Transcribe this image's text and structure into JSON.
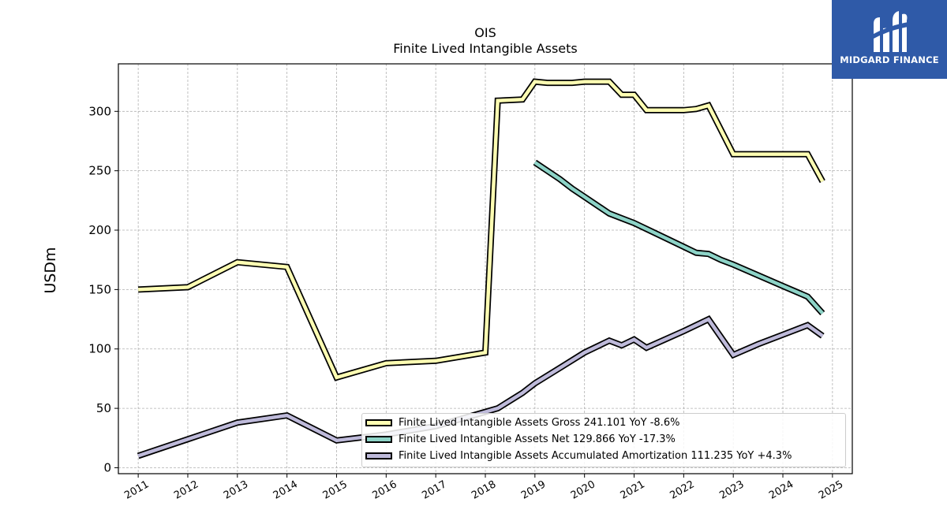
{
  "logo": {
    "text": "MIDGARD FINANCE",
    "color": "#2f5aa8"
  },
  "chart_data": {
    "type": "line",
    "title": "OIS",
    "subtitle": "Finite Lived Intangible Assets",
    "xlabel": "",
    "ylabel": "USDm",
    "xlim": [
      2010.6,
      2025.4
    ],
    "ylim": [
      -5,
      340
    ],
    "grid": true,
    "legend_position": "bottom-right",
    "x_ticks": [
      2011,
      2012,
      2013,
      2014,
      2015,
      2016,
      2017,
      2018,
      2019,
      2020,
      2021,
      2022,
      2023,
      2024,
      2025
    ],
    "y_ticks": [
      0,
      50,
      100,
      150,
      200,
      250,
      300
    ],
    "series": [
      {
        "name": "Finite Lived Intangible Assets Gross",
        "legend_label": "Finite Lived Intangible Assets Gross  241.101 YoY -8.6%",
        "color": "#ffffb3",
        "x": [
          2011,
          2012,
          2013,
          2014,
          2015,
          2016,
          2017,
          2018,
          2018.25,
          2018.75,
          2019,
          2019.25,
          2019.75,
          2020,
          2020.5,
          2020.75,
          2021,
          2021.25,
          2021.75,
          2022,
          2022.25,
          2022.5,
          2023,
          2023.5,
          2023.75,
          2024,
          2024.5,
          2024.8
        ],
        "y": [
          150,
          152,
          173,
          169,
          76,
          88,
          90,
          97,
          309,
          310,
          325,
          324,
          324,
          325,
          325,
          314,
          314,
          301,
          301,
          301,
          302,
          305,
          264,
          264,
          264,
          264,
          264,
          241
        ]
      },
      {
        "name": "Finite Lived Intangible Assets Net",
        "legend_label": "Finite Lived Intangible Assets Net  129.866 YoY -17.3%",
        "color": "#8dd3c7",
        "x": [
          2019,
          2019.5,
          2019.75,
          2020,
          2020.5,
          2021,
          2021.5,
          2022,
          2022.25,
          2022.5,
          2022.75,
          2023,
          2023.5,
          2024,
          2024.5,
          2024.8
        ],
        "y": [
          257,
          243,
          235,
          228,
          214,
          206,
          196,
          186,
          181,
          180,
          175,
          171,
          162,
          153,
          144,
          130
        ]
      },
      {
        "name": "Finite Lived Intangible Assets Accumulated Amortization",
        "legend_label": "Finite Lived Intangible Assets Accumulated Amortization  111.235 YoY +4.3%",
        "color": "#bebada",
        "x": [
          2011,
          2012,
          2013,
          2014,
          2015,
          2016,
          2017,
          2018,
          2018.25,
          2018.75,
          2019,
          2019.5,
          2020,
          2020.5,
          2020.75,
          2021,
          2021.25,
          2022,
          2022.5,
          2023,
          2023.5,
          2024,
          2024.5,
          2024.8
        ],
        "y": [
          10,
          24,
          38,
          44,
          23,
          28,
          35,
          47,
          50,
          63,
          71,
          84,
          97,
          107,
          103,
          108,
          101,
          115,
          125,
          95,
          104,
          112,
          120,
          111
        ]
      }
    ]
  }
}
